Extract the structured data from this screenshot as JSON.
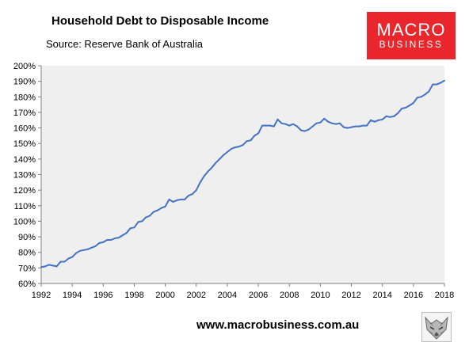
{
  "header": {
    "title": "Household Debt to Disposable Income",
    "subtitle": "Source: Reserve Bank of Australia"
  },
  "logo": {
    "line1": "MACRO",
    "line2": "BUSINESS",
    "color": "#e8262b"
  },
  "footer": {
    "website": "www.macrobusiness.com.au",
    "emblem_icon": "wolf-emblem-icon"
  },
  "chart_data": {
    "type": "line",
    "title": "Household Debt to Disposable Income",
    "xlabel": "",
    "ylabel": "",
    "xlim": [
      1992,
      2018
    ],
    "ylim": [
      60,
      200
    ],
    "grid": false,
    "plot_background": "#efefef",
    "line_color": "#4472c4",
    "x_ticks": [
      1992,
      1994,
      1996,
      1998,
      2000,
      2002,
      2004,
      2006,
      2008,
      2010,
      2012,
      2014,
      2016,
      2018
    ],
    "x_tick_labels": [
      "1992",
      "1994",
      "1996",
      "1998",
      "2000",
      "2002",
      "2004",
      "2006",
      "2008",
      "2010",
      "2012",
      "2014",
      "2016",
      "2018"
    ],
    "y_ticks": [
      60,
      70,
      80,
      90,
      100,
      110,
      120,
      130,
      140,
      150,
      160,
      170,
      180,
      190,
      200
    ],
    "y_tick_labels": [
      "60%",
      "70%",
      "80%",
      "90%",
      "100%",
      "110%",
      "120%",
      "130%",
      "140%",
      "150%",
      "160%",
      "170%",
      "180%",
      "190%",
      "200%"
    ],
    "series": [
      {
        "x": [
          1992.0,
          1992.25,
          1992.5,
          1992.75,
          1993.0,
          1993.25,
          1993.5,
          1993.75,
          1994.0,
          1994.25,
          1994.5,
          1994.75,
          1995.0,
          1995.25,
          1995.5,
          1995.75,
          1996.0,
          1996.25,
          1996.5,
          1996.75,
          1997.0,
          1997.25,
          1997.5,
          1997.75,
          1998.0,
          1998.25,
          1998.5,
          1998.75,
          1999.0,
          1999.25,
          1999.5,
          1999.75,
          2000.0,
          2000.25,
          2000.5,
          2000.75,
          2001.0,
          2001.25,
          2001.5,
          2001.75,
          2002.0,
          2002.25,
          2002.5,
          2002.75,
          2003.0,
          2003.25,
          2003.5,
          2003.75,
          2004.0,
          2004.25,
          2004.5,
          2004.75,
          2005.0,
          2005.25,
          2005.5,
          2005.75,
          2006.0,
          2006.25,
          2006.5,
          2006.75,
          2007.0,
          2007.25,
          2007.5,
          2007.75,
          2008.0,
          2008.25,
          2008.5,
          2008.75,
          2009.0,
          2009.25,
          2009.5,
          2009.75,
          2010.0,
          2010.25,
          2010.5,
          2010.75,
          2011.0,
          2011.25,
          2011.5,
          2011.75,
          2012.0,
          2012.25,
          2012.5,
          2012.75,
          2013.0,
          2013.25,
          2013.5,
          2013.75,
          2014.0,
          2014.25,
          2014.5,
          2014.75,
          2015.0,
          2015.25,
          2015.5,
          2015.75,
          2016.0,
          2016.25,
          2016.5,
          2016.75,
          2017.0,
          2017.25,
          2017.5,
          2017.75,
          2018.0
        ],
        "values": [
          70.5,
          71.0,
          72.0,
          71.5,
          71.0,
          74.0,
          74.0,
          76.0,
          77.0,
          79.5,
          81.0,
          81.5,
          82.0,
          83.0,
          84.0,
          86.0,
          86.5,
          88.0,
          88.0,
          89.0,
          89.5,
          91.0,
          92.5,
          95.5,
          96.0,
          99.5,
          100.0,
          102.5,
          103.5,
          106.0,
          107.0,
          108.5,
          109.5,
          114.0,
          112.5,
          113.5,
          114.0,
          114.0,
          116.5,
          117.5,
          120.0,
          125.0,
          129.0,
          132.0,
          134.5,
          137.5,
          140.0,
          142.5,
          144.5,
          146.5,
          147.5,
          148.0,
          149.0,
          151.5,
          152.0,
          155.0,
          156.5,
          161.5,
          161.5,
          161.5,
          161.0,
          165.5,
          163.0,
          162.5,
          161.5,
          162.5,
          161.0,
          158.5,
          158.0,
          159.0,
          161.0,
          163.0,
          163.5,
          166.0,
          164.0,
          163.0,
          162.5,
          163.0,
          160.5,
          160.0,
          160.5,
          161.0,
          161.0,
          161.5,
          161.5,
          165.0,
          164.0,
          165.0,
          165.5,
          167.5,
          167.0,
          167.5,
          169.5,
          172.5,
          173.0,
          174.5,
          176.0,
          179.5,
          180.0,
          181.5,
          183.5,
          188.0,
          188.0,
          189.0,
          190.5
        ]
      }
    ]
  }
}
